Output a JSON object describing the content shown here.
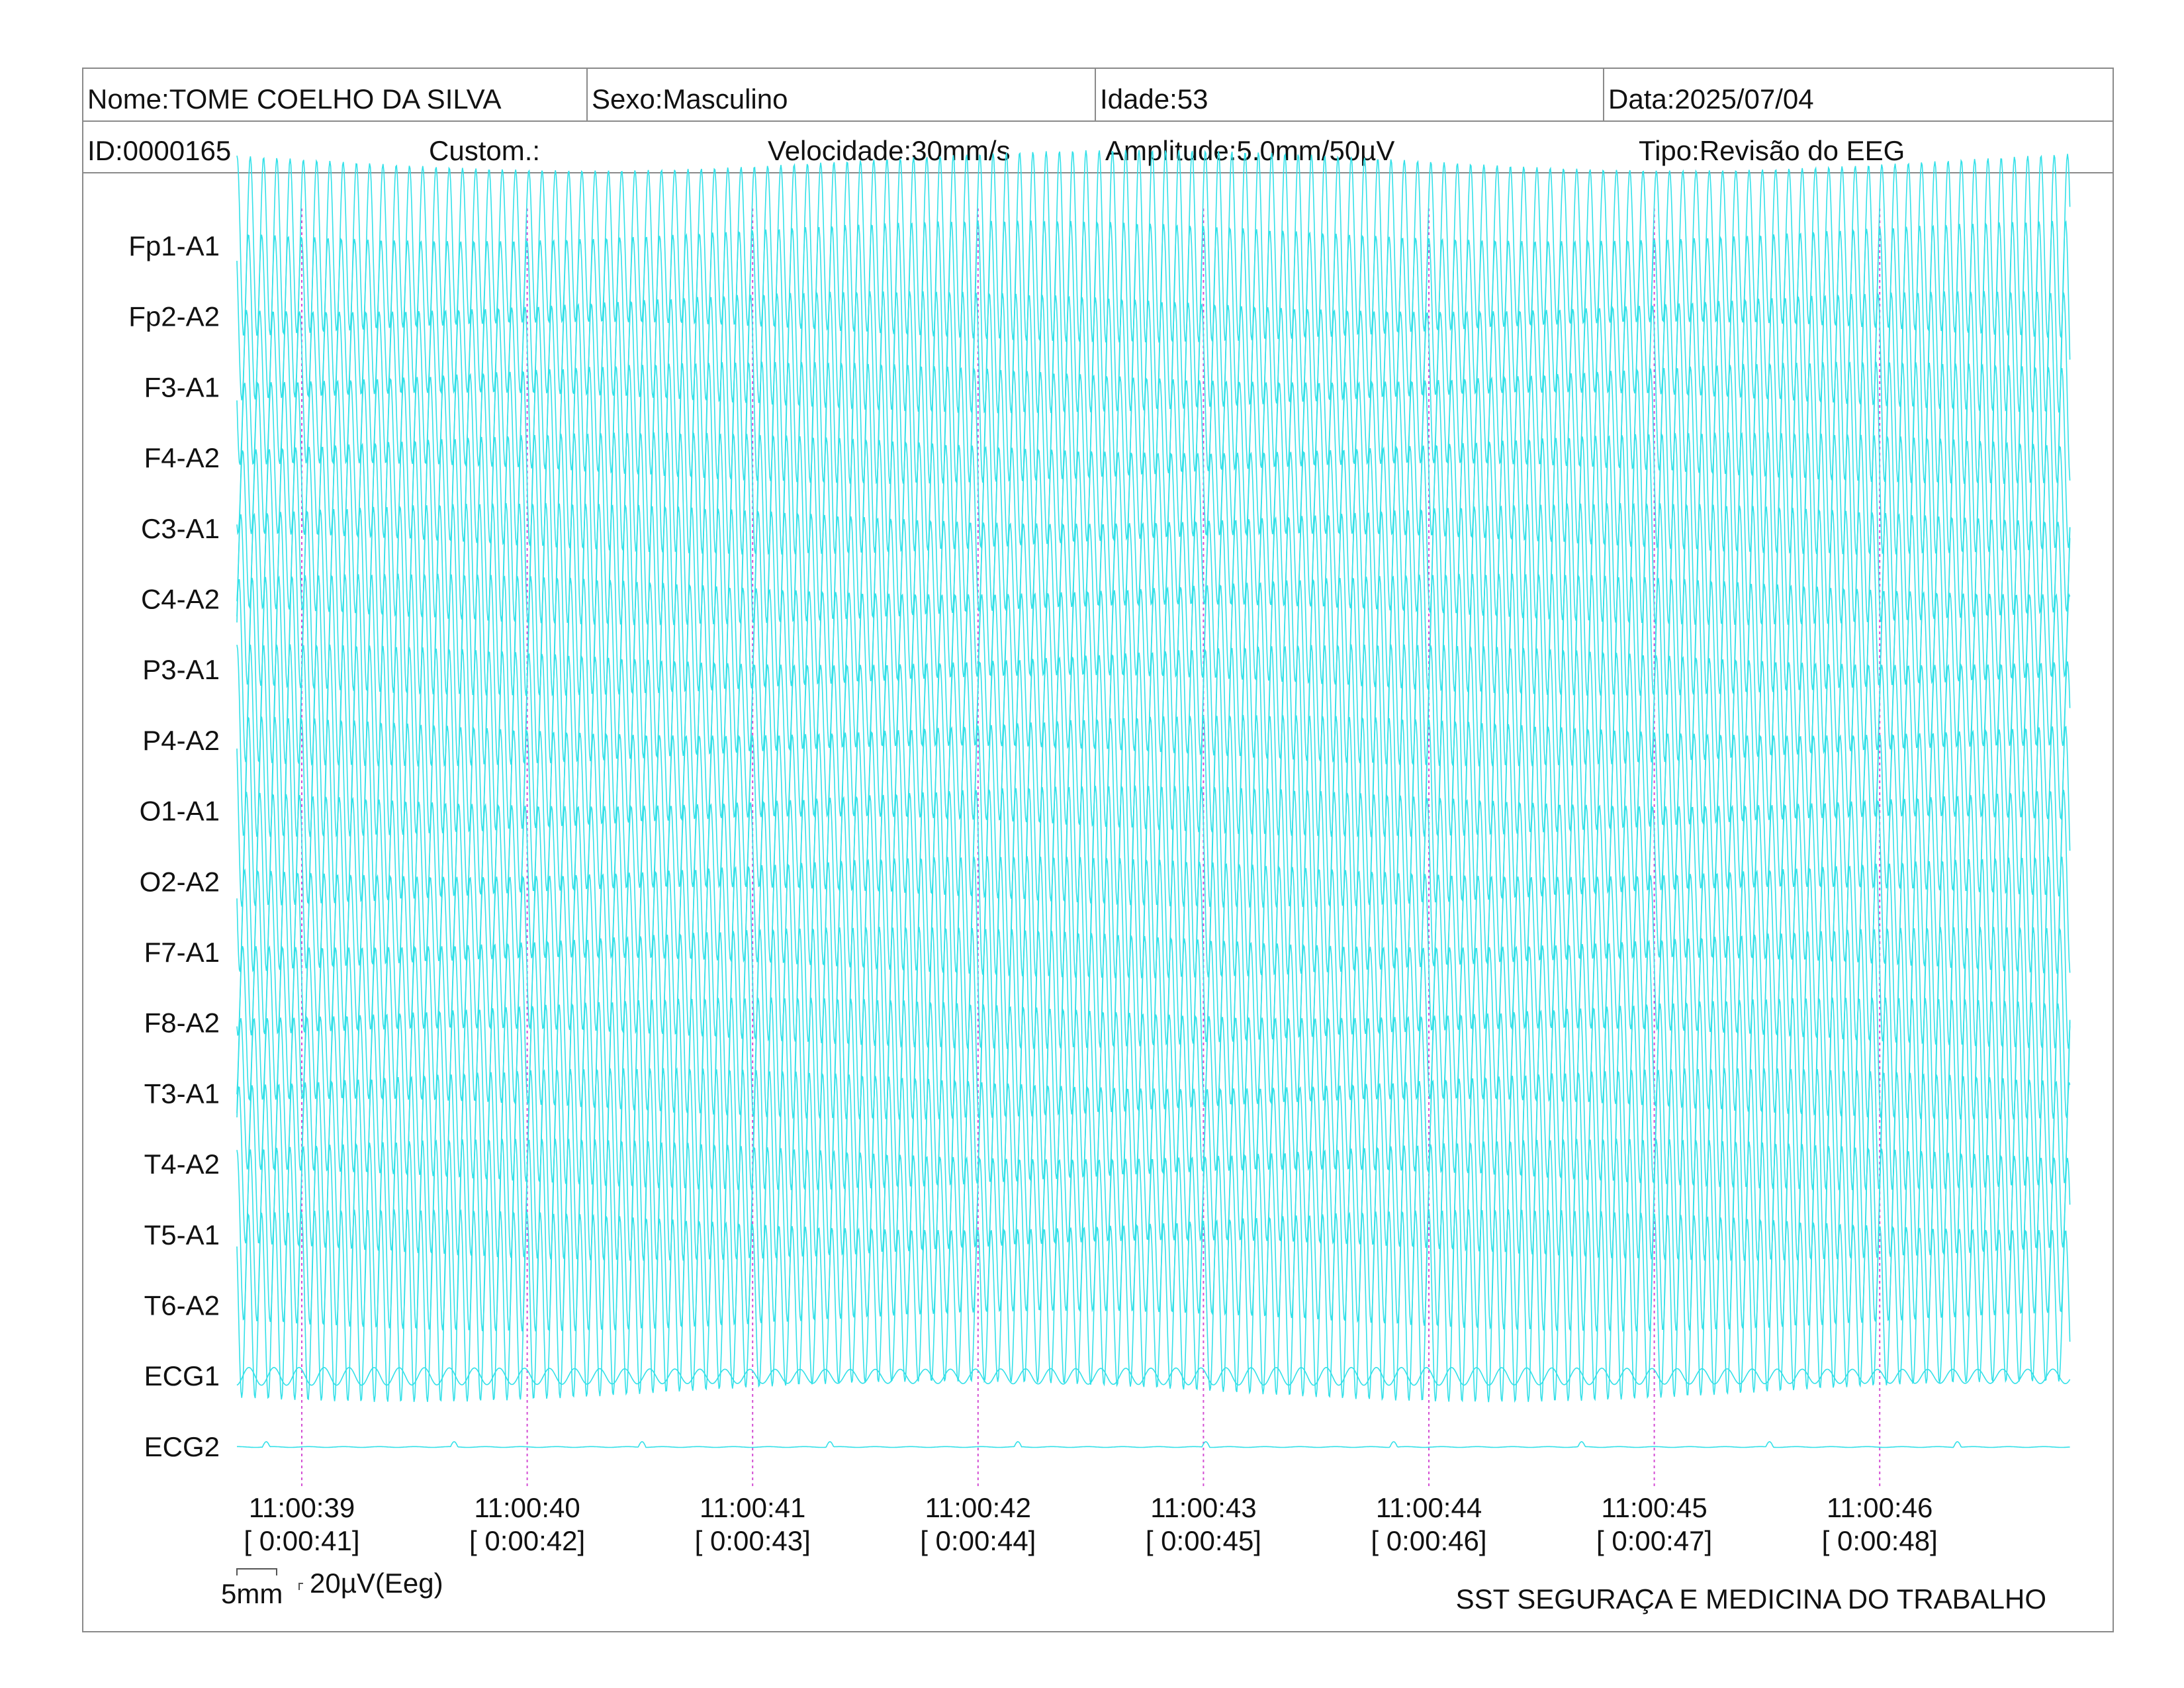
{
  "header": {
    "name": "Nome:TOME COELHO DA SILVA",
    "sex": "Sexo:Masculino",
    "age": "Idade:53",
    "date": "Data:2025/07/04",
    "id": "ID:0000165",
    "custom": "Custom.:",
    "speed": "Velocidade:30mm/s",
    "amplitude": "Amplitude:5.0mm/50µV",
    "type": "Tipo:Revisão do EEG"
  },
  "scale": {
    "time_label": "5mm",
    "amp_label": "20µV(Eeg)"
  },
  "footer": "SST SEGURAÇA E MEDICINA DO TRABALHO",
  "colors": {
    "trace": "#33e0e8",
    "marker": "#d44fd4",
    "border": "#8a8a8a"
  },
  "chart_data": {
    "type": "line",
    "title": "",
    "channels": [
      "Fp1-A1",
      "Fp2-A2",
      "F3-A1",
      "F4-A2",
      "C3-A1",
      "C4-A2",
      "P3-A1",
      "P4-A2",
      "O1-A1",
      "O2-A2",
      "F7-A1",
      "F8-A2",
      "T3-A1",
      "T4-A2",
      "T5-A1",
      "T6-A2",
      "ECG1",
      "ECG2"
    ],
    "time_markers": [
      {
        "clock": "11:00:39",
        "elapsed": "[ 0:00:41]"
      },
      {
        "clock": "11:00:40",
        "elapsed": "[ 0:00:42]"
      },
      {
        "clock": "11:00:41",
        "elapsed": "[ 0:00:43]"
      },
      {
        "clock": "11:00:42",
        "elapsed": "[ 0:00:44]"
      },
      {
        "clock": "11:00:43",
        "elapsed": "[ 0:00:45]"
      },
      {
        "clock": "11:00:44",
        "elapsed": "[ 0:00:46]"
      },
      {
        "clock": "11:00:45",
        "elapsed": "[ 0:00:47]"
      },
      {
        "clock": "11:00:46",
        "elapsed": "[ 0:00:48]"
      }
    ],
    "window_start_s": 40.72,
    "window_end_s": 48.85,
    "eeg_frequency_hz": 17,
    "eeg_amplitude_uv": 65,
    "ecg1_frequency_hz": 9,
    "ecg1_amplitude_uv": 6,
    "ecg2_amplitude_uv": 1.5
  }
}
